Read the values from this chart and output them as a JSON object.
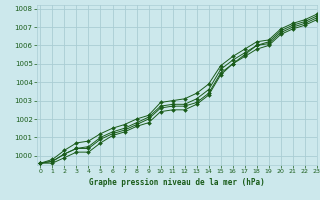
{
  "xlabel": "Graphe pression niveau de la mer (hPa)",
  "bg_color": "#cce8ec",
  "grid_color": "#aacdd4",
  "line_color": "#1a5c1a",
  "x_ticks": [
    0,
    1,
    2,
    3,
    4,
    5,
    6,
    7,
    8,
    9,
    10,
    11,
    12,
    13,
    14,
    15,
    16,
    17,
    18,
    19,
    20,
    21,
    22,
    23
  ],
  "ylim": [
    999.5,
    1008.2
  ],
  "xlim": [
    -0.3,
    23
  ],
  "yticks": [
    1000,
    1001,
    1002,
    1003,
    1004,
    1005,
    1006,
    1007,
    1008
  ],
  "series": [
    [
      999.6,
      999.7,
      1000.1,
      1000.4,
      1000.4,
      1000.9,
      1001.2,
      1001.4,
      1001.7,
      1002.0,
      1002.6,
      1002.7,
      1002.7,
      1002.9,
      1003.4,
      1004.5,
      1005.0,
      1005.5,
      1006.0,
      1006.1,
      1006.7,
      1007.0,
      1007.2,
      1007.5
    ],
    [
      999.6,
      999.8,
      1000.3,
      1000.7,
      1000.8,
      1001.2,
      1001.5,
      1001.7,
      1002.0,
      1002.2,
      1002.9,
      1003.0,
      1003.1,
      1003.4,
      1003.9,
      1004.9,
      1005.4,
      1005.8,
      1006.2,
      1006.3,
      1006.9,
      1007.2,
      1007.4,
      1007.7
    ],
    [
      999.6,
      999.7,
      1000.1,
      1000.4,
      1000.5,
      1001.0,
      1001.3,
      1001.5,
      1001.8,
      1002.1,
      1002.7,
      1002.8,
      1002.8,
      1003.1,
      1003.6,
      1004.7,
      1005.2,
      1005.6,
      1006.0,
      1006.2,
      1006.8,
      1007.1,
      1007.3,
      1007.6
    ],
    [
      999.6,
      999.6,
      999.9,
      1000.2,
      1000.2,
      1000.7,
      1001.1,
      1001.3,
      1001.6,
      1001.8,
      1002.4,
      1002.5,
      1002.5,
      1002.8,
      1003.3,
      1004.4,
      1005.0,
      1005.4,
      1005.8,
      1006.0,
      1006.6,
      1006.9,
      1007.1,
      1007.4
    ]
  ]
}
